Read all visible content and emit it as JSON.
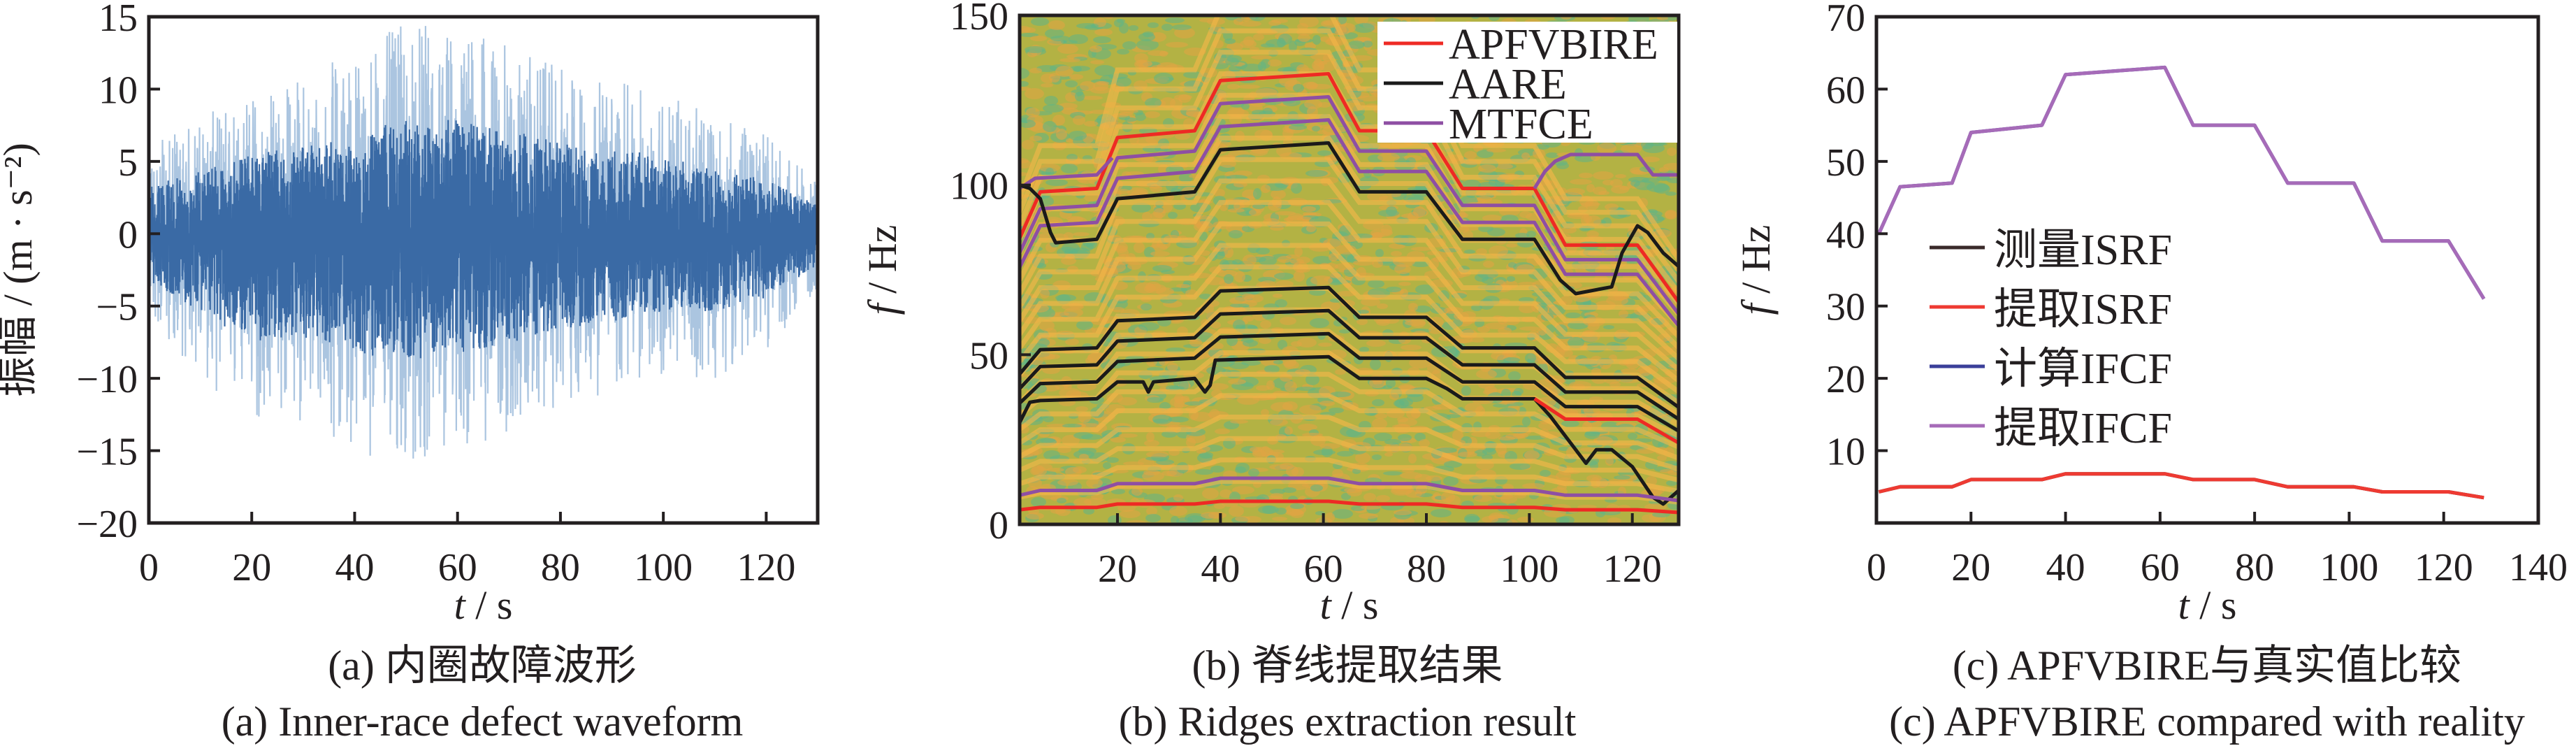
{
  "chart_data": [
    {
      "id": "a",
      "type": "line",
      "title": "",
      "caption_cn": "(a)  内圈故障波形",
      "caption_en": "(a)  Inner-race defect waveform",
      "xlabel_italic": "t",
      "xlabel_unit": " / s",
      "ylabel": "振幅 / (m · s⁻²)",
      "xlim": [
        0,
        130
      ],
      "ylim": [
        -20,
        15
      ],
      "xticks": [
        0,
        20,
        40,
        60,
        80,
        100,
        120
      ],
      "yticks": [
        -20,
        -15,
        -10,
        -5,
        0,
        5,
        10,
        15
      ],
      "grid": false,
      "series_color": "#3a6aa5",
      "series_light_color": "#8fb2d6",
      "envelope": {
        "t": [
          0,
          10,
          20,
          30,
          40,
          50,
          60,
          70,
          80,
          90,
          100,
          110,
          120,
          130
        ],
        "peak_pos": [
          6,
          8,
          10,
          11,
          13,
          14.5,
          14.5,
          13,
          11.5,
          10.5,
          10,
          8,
          7,
          3.5
        ],
        "peak_neg": [
          -6,
          -10,
          -13.5,
          -13,
          -15,
          -16.5,
          -15,
          -14,
          -12,
          -11,
          -10,
          -10,
          -8,
          -4
        ]
      }
    },
    {
      "id": "b",
      "type": "line",
      "title": "",
      "caption_cn": "(b)  脊线提取结果",
      "caption_en": "(b)  Ridges extraction result",
      "xlabel_italic": "t",
      "xlabel_unit": " / s",
      "ylabel_italic": "f",
      "ylabel_unit": " / Hz",
      "xlim": [
        1,
        129
      ],
      "ylim": [
        0,
        150
      ],
      "xticks": [
        20,
        40,
        60,
        80,
        100,
        120
      ],
      "yticks": [
        0,
        50,
        100,
        150
      ],
      "grid": false,
      "legend_placement": "top-right",
      "legend": [
        {
          "label": "APFVBIRE",
          "color": "#ee2a24"
        },
        {
          "label": "AARE",
          "color": "#1a1a1a"
        },
        {
          "label": "MTFCE",
          "color": "#8e4fa3"
        }
      ],
      "background": "time-frequency spectrogram",
      "t_grid": [
        1,
        5,
        16,
        20,
        35,
        40,
        61,
        67,
        80,
        87,
        101,
        107,
        121,
        129
      ],
      "series": [
        {
          "name": "APFVBIRE",
          "color": "#ee2a24",
          "values": [
            84.3,
            98,
            99,
            114,
            116,
            130.8,
            132.8,
            116,
            116,
            99,
            99,
            82.3,
            82.3,
            65.5
          ]
        },
        {
          "name": "MTFCE",
          "color": "#8e4fa3",
          "values": [
            80,
            93,
            94,
            108,
            110,
            124,
            126,
            110,
            110,
            94,
            94,
            78,
            78,
            62
          ]
        },
        {
          "name": "MTFCE",
          "color": "#8e4fa3",
          "values": [
            75.7,
            88,
            89,
            102,
            104,
            117.2,
            119.2,
            104,
            104,
            89,
            89,
            73.7,
            73.7,
            58.5
          ]
        },
        {
          "name": "MTFCE",
          "color": "#8e4fa3",
          "points": [
            [
              1,
              99
            ],
            [
              4,
              102
            ],
            [
              16,
              103
            ],
            [
              19,
              108
            ]
          ]
        },
        {
          "name": "MTFCE",
          "color": "#8e4fa3",
          "points": [
            [
              101,
              99
            ],
            [
              103,
              104
            ],
            [
              105,
              107
            ],
            [
              108,
              109
            ],
            [
              121,
              109
            ],
            [
              124,
              103
            ],
            [
              129,
              103
            ]
          ]
        },
        {
          "name": "AARE",
          "color": "#1a1a1a",
          "points": [
            [
              1,
              100
            ],
            [
              3,
              99
            ],
            [
              5,
              96
            ],
            [
              7,
              86
            ],
            [
              8,
              83
            ],
            [
              16,
              84
            ],
            [
              20,
              96
            ],
            [
              35,
              98
            ],
            [
              40,
              110.4
            ],
            [
              61,
              112.4
            ],
            [
              67,
              98
            ],
            [
              80,
              98
            ],
            [
              87,
              84
            ],
            [
              101,
              84
            ],
            [
              106,
              72
            ],
            [
              109,
              68
            ],
            [
              116,
              70
            ],
            [
              118,
              80
            ],
            [
              121,
              88
            ],
            [
              123,
              86
            ],
            [
              126,
              80
            ],
            [
              129,
              76
            ]
          ]
        },
        {
          "name": "AARE",
          "color": "#1a1a1a",
          "values": [
            44.3,
            51.5,
            52,
            60,
            61,
            68.8,
            69.8,
            61,
            61,
            52,
            52,
            43.3,
            43.3,
            34.5
          ]
        },
        {
          "name": "AARE",
          "color": "#1a1a1a",
          "values": [
            40,
            46.5,
            47,
            54,
            55,
            62,
            63,
            55,
            55,
            47,
            47,
            39,
            39,
            31
          ]
        },
        {
          "name": "AARE",
          "color": "#1a1a1a",
          "values": [
            35.7,
            41.5,
            42,
            48,
            49,
            55.2,
            56.2,
            49,
            49,
            42,
            42,
            34.7,
            34.7,
            27.5
          ]
        },
        {
          "name": "AARE",
          "color": "#1a1a1a",
          "points": [
            [
              1,
              30
            ],
            [
              3,
              36
            ],
            [
              5,
              36.5
            ],
            [
              16,
              37
            ],
            [
              20,
              42
            ],
            [
              25,
              42
            ],
            [
              26,
              39
            ],
            [
              27,
              42
            ],
            [
              35,
              43
            ],
            [
              37,
              39
            ],
            [
              38,
              41
            ],
            [
              39,
              48.4
            ],
            [
              61,
              49.4
            ],
            [
              67,
              43
            ],
            [
              80,
              43
            ],
            [
              84,
              40
            ],
            [
              87,
              37
            ],
            [
              101,
              37
            ],
            [
              104,
              32
            ],
            [
              108,
              24
            ],
            [
              111,
              18
            ],
            [
              113,
              22
            ],
            [
              116,
              22
            ],
            [
              120,
              17
            ],
            [
              124,
              8
            ],
            [
              126,
              6
            ],
            [
              129,
              10
            ]
          ]
        },
        {
          "name": "APFVBIRE",
          "color": "#ee2a24",
          "points": [
            [
              101,
              37
            ],
            [
              103,
              35
            ],
            [
              107,
              31
            ],
            [
              121,
              31
            ],
            [
              129,
              24
            ]
          ]
        },
        {
          "name": "MTFCE",
          "color": "#8e4fa3",
          "values": [
            8.6,
            10,
            10,
            12,
            12,
            13.6,
            13.6,
            12,
            12,
            10,
            10,
            8.6,
            8.6,
            7
          ]
        },
        {
          "name": "APFVBIRE",
          "color": "#ee2a24",
          "values": [
            4.3,
            5,
            5,
            6,
            6,
            6.8,
            6.8,
            6,
            6,
            5,
            5,
            4.3,
            4.3,
            3.5
          ]
        }
      ]
    },
    {
      "id": "c",
      "type": "line",
      "title": "",
      "caption_cn": "(c)  APFVBIRE与真实值比较",
      "caption_en": "(c)  APFVBIRE compared with reality",
      "xlabel_italic": "t",
      "xlabel_unit": " / s",
      "ylabel_italic": "f",
      "ylabel_unit": " / Hz",
      "xlim": [
        0,
        140
      ],
      "ylim": [
        0,
        70
      ],
      "xticks": [
        0,
        20,
        40,
        60,
        80,
        100,
        120,
        140
      ],
      "yticks": [
        10,
        20,
        30,
        40,
        50,
        60,
        70
      ],
      "grid": false,
      "legend_placement": "center-left",
      "t_grid": [
        0.5,
        5,
        16,
        20,
        35,
        40,
        61,
        67,
        80,
        87,
        101,
        107,
        121,
        128.5
      ],
      "series": [
        {
          "name": "计算IFCF",
          "color": "#3b3f99",
          "values": [
            40,
            46.5,
            47,
            54,
            55,
            62,
            63,
            55,
            55,
            47,
            47,
            39,
            39,
            31
          ]
        },
        {
          "name": "提取IFCF",
          "color": "#a66bb8",
          "values": [
            40,
            46.5,
            47,
            54,
            55,
            62,
            63,
            55,
            55,
            47,
            47,
            39,
            39,
            31
          ]
        },
        {
          "name": "测量ISRF",
          "color": "#3a2a2a",
          "values": [
            4.3,
            5,
            5,
            6,
            6,
            6.8,
            6.8,
            6,
            6,
            5,
            5,
            4.3,
            4.3,
            3.5
          ]
        },
        {
          "name": "提取ISRF",
          "color": "#ee3a32",
          "values": [
            4.3,
            5,
            5,
            6,
            6,
            6.8,
            6.8,
            6,
            6,
            5,
            5,
            4.3,
            4.3,
            3.5
          ]
        }
      ],
      "legend": [
        {
          "label": "测量ISRF",
          "color": "#3a2a2a"
        },
        {
          "label": "提取ISRF",
          "color": "#ee3a32"
        },
        {
          "label": "计算IFCF",
          "color": "#3b3f99"
        },
        {
          "label": "提取IFCF",
          "color": "#a66bb8"
        }
      ]
    }
  ]
}
